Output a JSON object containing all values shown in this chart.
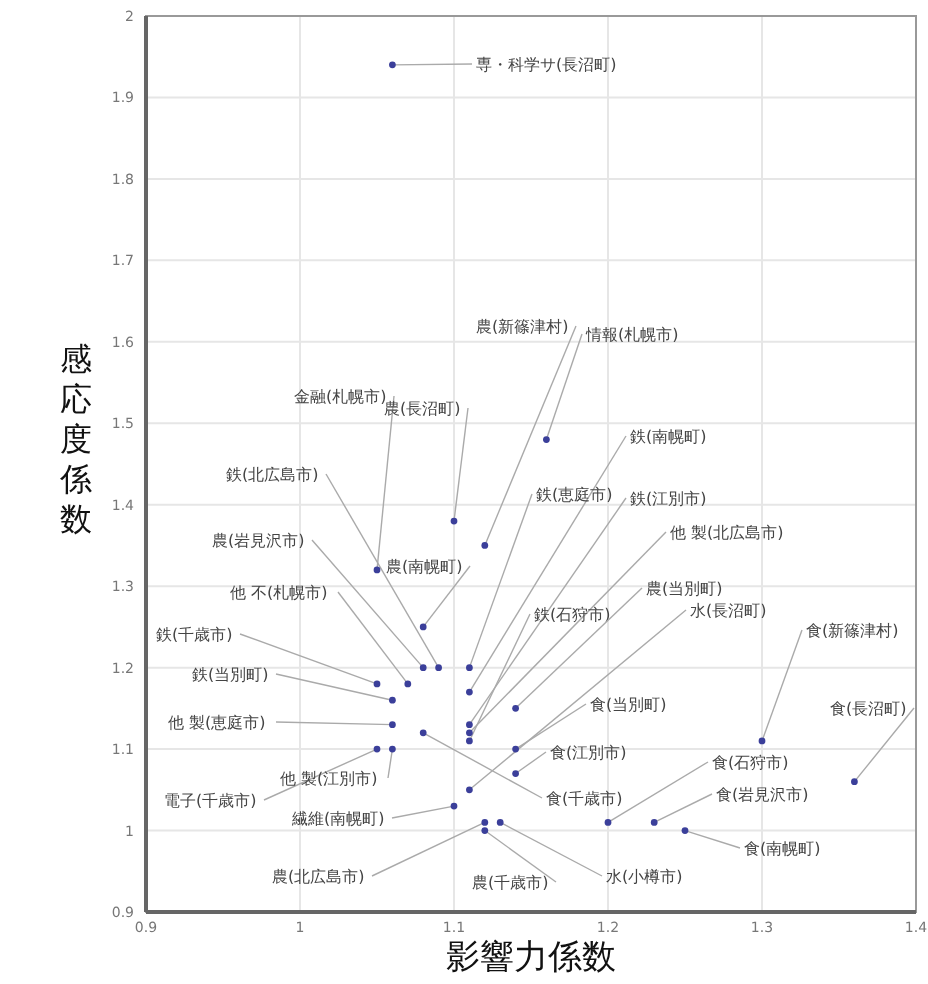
{
  "chart_data": {
    "type": "scatter",
    "xlabel": "影響力係数",
    "ylabel": "感応度係数",
    "xlim": [
      0.9,
      1.4
    ],
    "xticks": [
      0.9,
      1,
      1.1,
      1.2,
      1.3,
      1.4
    ],
    "ylim": [
      0.9,
      2
    ],
    "yticks": [
      0.9,
      1,
      1.1,
      1.2,
      1.3,
      1.4,
      1.5,
      1.6,
      1.7,
      1.8,
      1.9,
      2
    ],
    "grid": true,
    "marker": "circle",
    "series": [
      {
        "color": "#3b3f9a",
        "x": [
          1.06,
          1.12,
          1.16,
          1.05,
          1.1,
          1.11,
          1.09,
          1.11,
          1.11,
          1.11,
          1.08,
          1.08,
          1.07,
          1.11,
          1.14,
          1.11,
          1.3,
          1.05,
          1.06,
          1.14,
          1.06,
          1.14,
          1.36,
          1.05,
          1.2,
          1.06,
          1.08,
          1.23,
          1.1,
          1.25,
          1.12,
          1.12,
          1.13
        ],
        "values": [
          1.94,
          1.35,
          1.48,
          1.32,
          1.38,
          1.17,
          1.2,
          1.2,
          1.13,
          1.12,
          1.2,
          1.25,
          1.18,
          1.11,
          1.15,
          1.05,
          1.11,
          1.18,
          1.16,
          1.1,
          1.13,
          1.07,
          1.06,
          1.1,
          1.01,
          1.1,
          1.12,
          1.01,
          1.03,
          1.0,
          1.01,
          1.0,
          1.01
        ]
      }
    ],
    "annotations": [
      {
        "text": "専・科学サ(長沼町)",
        "x": 1.06,
        "y": 1.94
      },
      {
        "text": "農(新篠津村)",
        "x": 1.12,
        "y": 1.35
      },
      {
        "text": "情報(札幌市)",
        "x": 1.16,
        "y": 1.48
      },
      {
        "text": "金融(札幌市)",
        "x": 1.05,
        "y": 1.32
      },
      {
        "text": "農(長沼町)",
        "x": 1.1,
        "y": 1.38
      },
      {
        "text": "鉄(南幌町)",
        "x": 1.11,
        "y": 1.17
      },
      {
        "text": "鉄(北広島市)",
        "x": 1.09,
        "y": 1.2
      },
      {
        "text": "鉄(恵庭市)",
        "x": 1.11,
        "y": 1.2
      },
      {
        "text": "鉄(江別市)",
        "x": 1.11,
        "y": 1.13
      },
      {
        "text": "他 製(北広島市)",
        "x": 1.11,
        "y": 1.12
      },
      {
        "text": "農(岩見沢市)",
        "x": 1.08,
        "y": 1.2
      },
      {
        "text": "農(南幌町)",
        "x": 1.08,
        "y": 1.25
      },
      {
        "text": "他 不(札幌市)",
        "x": 1.07,
        "y": 1.18
      },
      {
        "text": "鉄(石狩市)",
        "x": 1.11,
        "y": 1.11
      },
      {
        "text": "農(当別町)",
        "x": 1.14,
        "y": 1.15
      },
      {
        "text": "水(長沼町)",
        "x": 1.11,
        "y": 1.05
      },
      {
        "text": "食(新篠津村)",
        "x": 1.3,
        "y": 1.11
      },
      {
        "text": "鉄(千歳市)",
        "x": 1.05,
        "y": 1.18
      },
      {
        "text": "鉄(当別町)",
        "x": 1.06,
        "y": 1.16
      },
      {
        "text": "食(当別町)",
        "x": 1.14,
        "y": 1.1
      },
      {
        "text": "他 製(恵庭市)",
        "x": 1.06,
        "y": 1.13
      },
      {
        "text": "食(江別市)",
        "x": 1.14,
        "y": 1.07
      },
      {
        "text": "食(長沼町)",
        "x": 1.36,
        "y": 1.06
      },
      {
        "text": "電子(千歳市)",
        "x": 1.05,
        "y": 1.1
      },
      {
        "text": "食(石狩市)",
        "x": 1.2,
        "y": 1.01
      },
      {
        "text": "他 製(江別市)",
        "x": 1.06,
        "y": 1.1
      },
      {
        "text": "食(千歳市)",
        "x": 1.08,
        "y": 1.12
      },
      {
        "text": "食(岩見沢市)",
        "x": 1.23,
        "y": 1.01
      },
      {
        "text": "繊維(南幌町)",
        "x": 1.1,
        "y": 1.03
      },
      {
        "text": "食(南幌町)",
        "x": 1.25,
        "y": 1.0
      },
      {
        "text": "農(北広島市)",
        "x": 1.12,
        "y": 1.01
      },
      {
        "text": "農(千歳市)",
        "x": 1.12,
        "y": 1.0
      },
      {
        "text": "水(小樽市)",
        "x": 1.13,
        "y": 1.01
      }
    ]
  }
}
